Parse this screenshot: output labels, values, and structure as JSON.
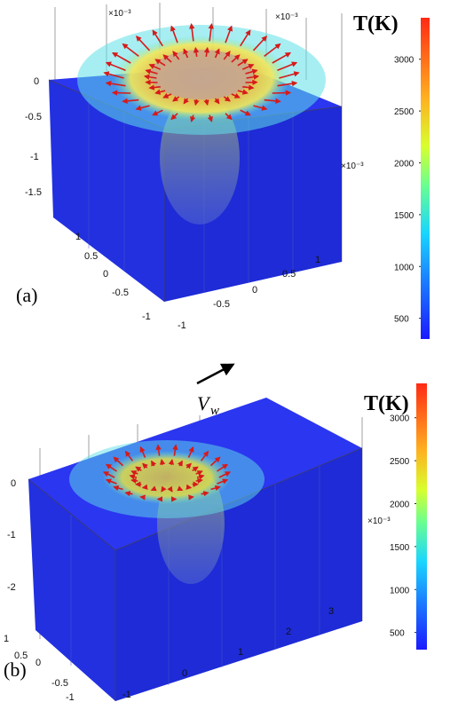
{
  "chart_data": [
    {
      "type": "3d-surface",
      "panel_label": "(a)",
      "colorbar": {
        "title": "T(K)",
        "ticks": [
          500,
          1000,
          1500,
          2000,
          2500,
          3000
        ],
        "range": [
          300,
          3400
        ]
      },
      "colors": {
        "cold": "#1f2ee6",
        "melt_ring": "#e8a21c",
        "hot": "#d7261a",
        "arrows": "#d61a1a"
      },
      "axes": {
        "x": {
          "ticks": [
            "-1",
            "-0.5",
            "0",
            "0.5",
            "1"
          ],
          "multiplier": "×10⁻³"
        },
        "y": {
          "ticks": [
            "-1",
            "-0.5",
            "0",
            "0.5",
            "1"
          ],
          "multiplier": "×10⁻³"
        },
        "z": {
          "ticks": [
            "0",
            "-0.5",
            "-1",
            "-1.5"
          ],
          "multiplier": "×10⁻³"
        }
      }
    },
    {
      "type": "3d-surface",
      "panel_label": "(b)",
      "velocity_label": {
        "main": "V",
        "sub": "w"
      },
      "colorbar": {
        "title": "T(K)",
        "ticks": [
          500,
          1000,
          1500,
          2000,
          2500,
          3000
        ],
        "range": [
          300,
          3400
        ]
      },
      "colors": {
        "cold": "#1f2ee6",
        "melt_ring": "#c9c23a",
        "hot": "#d7261a",
        "arrows": "#d61a1a"
      },
      "axes": {
        "x": {
          "ticks": [
            "-1",
            "0",
            "1",
            "2",
            "3"
          ],
          "multiplier": "×10⁻³"
        },
        "y": {
          "ticks": [
            "-1",
            "-0.5",
            "0",
            "0.5",
            "1"
          ],
          "multiplier": ""
        },
        "z": {
          "ticks": [
            "0",
            "-1",
            "-2"
          ],
          "multiplier": ""
        }
      }
    }
  ]
}
